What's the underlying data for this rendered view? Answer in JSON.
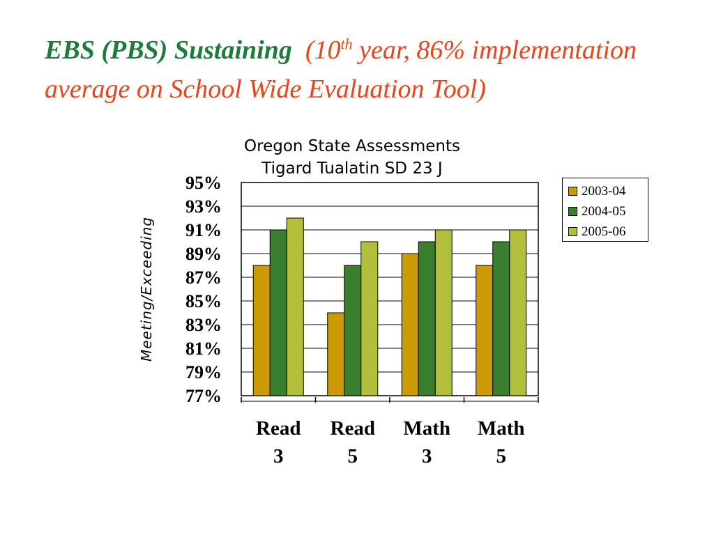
{
  "slide": {
    "title_bold": "EBS (PBS) Sustaining",
    "title_pre_sup": "(10",
    "title_sup": "th",
    "title_post_sup": " year, 86% implementation average on School Wide Evaluation Tool)"
  },
  "colors": {
    "title_green": "#1f7a3d",
    "title_orange": "#e8451c"
  },
  "chart_data": {
    "type": "bar",
    "title": "Oregon State Assessments",
    "subtitle": "Tigard Tualatin SD 23 J",
    "ylabel": "Meeting/Exceeding",
    "xlabel": "",
    "categories": [
      [
        "Read",
        "3"
      ],
      [
        "Read",
        "5"
      ],
      [
        "Math",
        "3"
      ],
      [
        "Math",
        "5"
      ]
    ],
    "series": [
      {
        "name": "2003-04",
        "color": "#cc9a06",
        "values": [
          88,
          84,
          89,
          88
        ]
      },
      {
        "name": "2004-05",
        "color": "#3a7f2e",
        "values": [
          91,
          88,
          90,
          90
        ]
      },
      {
        "name": "2005-06",
        "color": "#b2bf3c",
        "values": [
          92,
          90,
          91,
          91
        ]
      }
    ],
    "ylim": [
      77,
      95
    ],
    "yticks": [
      "95%",
      "93%",
      "91%",
      "89%",
      "87%",
      "85%",
      "83%",
      "81%",
      "79%",
      "77%"
    ],
    "ytick_values": [
      95,
      93,
      91,
      89,
      87,
      85,
      83,
      81,
      79,
      77
    ],
    "grid": true,
    "legend_position": "right"
  }
}
